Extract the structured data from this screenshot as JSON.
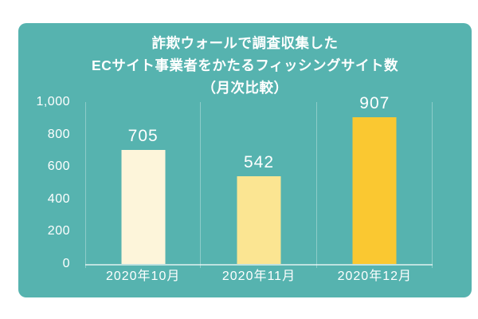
{
  "colors": {
    "page_background": "#ffffff",
    "card_background": "#56b3af",
    "text": "#ffffff",
    "grid_line": "rgba(255,255,255,0.33)",
    "axis_line": "rgba(255,255,255,0.62)"
  },
  "title": {
    "line1": "詐欺ウォールで調査収集した",
    "line2": "ECサイト事業者をかたるフィッシングサイト数",
    "line3": "（月次比較）"
  },
  "chart_data": {
    "type": "bar",
    "title": "詐欺ウォールで調査収集した ECサイト事業者をかたるフィッシングサイト数（月次比較）",
    "categories": [
      "2020年10月",
      "2020年11月",
      "2020年12月"
    ],
    "values": [
      705,
      542,
      907
    ],
    "value_labels": [
      "705",
      "542",
      "907"
    ],
    "bar_colors": [
      "#fdf5da",
      "#fbe592",
      "#fac831"
    ],
    "xlabel": "",
    "ylabel": "",
    "ylim": [
      0,
      1000
    ],
    "yticks": [
      0,
      200,
      400,
      600,
      800,
      1000
    ],
    "ytick_labels": [
      "0",
      "200",
      "400",
      "600",
      "800",
      "1,000"
    ],
    "grid": "column-separators",
    "legend_position": "none"
  }
}
